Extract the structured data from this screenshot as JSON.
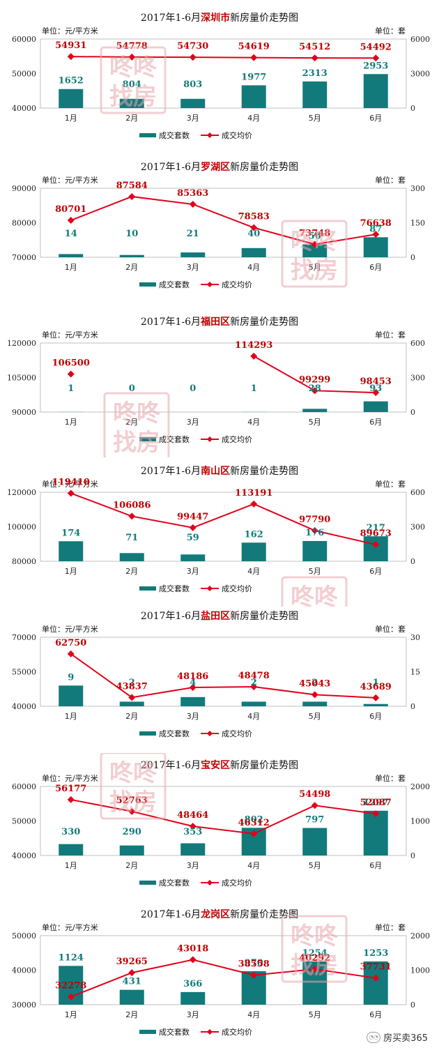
{
  "chart_data": [
    {
      "type": "bar",
      "title": "2017年1-6月深圳市新房量价走势图",
      "title_parts": {
        "prefix": "2017年1-6月",
        "highlight": "深圳市",
        "suffix": "新房量价走势图"
      },
      "left_unit": "单位：元/平方米",
      "right_unit": "单位：套",
      "categories": [
        "1月",
        "2月",
        "3月",
        "4月",
        "5月",
        "6月"
      ],
      "left_axis": {
        "min": 40000,
        "max": 60000,
        "ticks": [
          40000,
          50000,
          60000
        ]
      },
      "right_axis": {
        "min": 0,
        "max": 6000,
        "ticks": [
          0,
          3000,
          6000
        ]
      },
      "series": [
        {
          "name": "成交套数",
          "type": "bar",
          "axis": "right",
          "color": "#127a7a",
          "values": [
            1652,
            804,
            803,
            1977,
            2313,
            2953
          ]
        },
        {
          "name": "成交均价",
          "type": "line",
          "axis": "left",
          "color": "#e2001a",
          "values": [
            54931,
            54778,
            54730,
            54619,
            54512,
            54492
          ]
        }
      ],
      "legend": "bottom"
    },
    {
      "type": "bar",
      "title": "2017年1-6月罗湖区新房量价走势图",
      "title_parts": {
        "prefix": "2017年1-6月",
        "highlight": "罗湖区",
        "suffix": "新房量价走势图"
      },
      "left_unit": "单位：元/平方米",
      "right_unit": "单位：套",
      "categories": [
        "1月",
        "2月",
        "3月",
        "4月",
        "5月",
        "6月"
      ],
      "left_axis": {
        "min": 70000,
        "max": 90000,
        "ticks": [
          70000,
          80000,
          90000
        ]
      },
      "right_axis": {
        "min": 0,
        "max": 300,
        "ticks": [
          0,
          150,
          300
        ]
      },
      "series": [
        {
          "name": "成交套数",
          "type": "bar",
          "axis": "right",
          "color": "#127a7a",
          "values": [
            14,
            10,
            21,
            40,
            56,
            87
          ]
        },
        {
          "name": "成交均价",
          "type": "line",
          "axis": "left",
          "color": "#e2001a",
          "values": [
            80701,
            87584,
            85363,
            78583,
            73748,
            76638
          ]
        }
      ],
      "legend": "bottom"
    },
    {
      "type": "bar",
      "title": "2017年1-6月福田区新房量价走势图",
      "title_parts": {
        "prefix": "2017年1-6月",
        "highlight": "福田区",
        "suffix": "新房量价走势图"
      },
      "left_unit": "单位：元/平方米",
      "right_unit": "单位：套",
      "categories": [
        "1月",
        "2月",
        "3月",
        "4月",
        "5月",
        "6月"
      ],
      "left_axis": {
        "min": 90000,
        "max": 120000,
        "ticks": [
          90000,
          105000,
          120000
        ]
      },
      "right_axis": {
        "min": 0,
        "max": 600,
        "ticks": [
          0,
          300,
          600
        ]
      },
      "series": [
        {
          "name": "成交套数",
          "type": "bar",
          "axis": "right",
          "color": "#127a7a",
          "values": [
            1,
            0,
            0,
            1,
            28,
            93
          ]
        },
        {
          "name": "成交均价",
          "type": "line",
          "axis": "left",
          "color": "#e2001a",
          "values": [
            106500,
            null,
            null,
            114293,
            99299,
            98453
          ]
        }
      ],
      "legend": "bottom"
    },
    {
      "type": "bar",
      "title": "2017年1-6月南山区新房量价走势图",
      "title_parts": {
        "prefix": "2017年1-6月",
        "highlight": "南山区",
        "suffix": "新房量价走势图"
      },
      "left_unit": "单位：元/平方米",
      "right_unit": "单位：套",
      "categories": [
        "1月",
        "2月",
        "3月",
        "4月",
        "5月",
        "6月"
      ],
      "left_axis": {
        "min": 80000,
        "max": 120000,
        "ticks": [
          80000,
          100000,
          120000
        ]
      },
      "right_axis": {
        "min": 0,
        "max": 600,
        "ticks": [
          0,
          300,
          600
        ]
      },
      "series": [
        {
          "name": "成交套数",
          "type": "bar",
          "axis": "right",
          "color": "#127a7a",
          "values": [
            174,
            71,
            59,
            162,
            176,
            217
          ]
        },
        {
          "name": "成交均价",
          "type": "line",
          "axis": "left",
          "color": "#e2001a",
          "values": [
            119410,
            106086,
            99447,
            113191,
            97790,
            89673
          ]
        }
      ],
      "legend": "bottom"
    },
    {
      "type": "bar",
      "title": "2017年1-6月盐田区新房量价走势图",
      "title_parts": {
        "prefix": "2017年1-6月",
        "highlight": "盐田区",
        "suffix": "新房量价走势图"
      },
      "left_unit": "单位：元/平方米",
      "right_unit": "单位：套",
      "categories": [
        "1月",
        "2月",
        "3月",
        "4月",
        "5月",
        "6月"
      ],
      "left_axis": {
        "min": 40000,
        "max": 70000,
        "ticks": [
          40000,
          55000,
          70000
        ]
      },
      "right_axis": {
        "min": 0,
        "max": 30,
        "ticks": [
          0,
          15,
          30
        ]
      },
      "series": [
        {
          "name": "成交套数",
          "type": "bar",
          "axis": "right",
          "color": "#127a7a",
          "values": [
            9,
            2,
            4,
            2,
            2,
            1
          ]
        },
        {
          "name": "成交均价",
          "type": "line",
          "axis": "left",
          "color": "#e2001a",
          "values": [
            62750,
            43837,
            48186,
            48478,
            45043,
            43689
          ]
        }
      ],
      "legend": "bottom"
    },
    {
      "type": "bar",
      "title": "2017年1-6月宝安区新房量价走势图",
      "title_parts": {
        "prefix": "2017年1-6月",
        "highlight": "宝安区",
        "suffix": "新房量价走势图"
      },
      "left_unit": "单位：元/平方米",
      "right_unit": "单位：套",
      "categories": [
        "1月",
        "2月",
        "3月",
        "4月",
        "5月",
        "6月"
      ],
      "left_axis": {
        "min": 40000,
        "max": 60000,
        "ticks": [
          40000,
          50000,
          60000
        ]
      },
      "right_axis": {
        "min": 0,
        "max": 2000,
        "ticks": [
          0,
          1000,
          2000
        ]
      },
      "series": [
        {
          "name": "成交套数",
          "type": "bar",
          "axis": "right",
          "color": "#127a7a",
          "values": [
            330,
            290,
            353,
            802,
            797,
            1297
          ]
        },
        {
          "name": "成交均价",
          "type": "line",
          "axis": "left",
          "color": "#e2001a",
          "values": [
            56177,
            52763,
            48464,
            46312,
            54498,
            52087
          ]
        }
      ],
      "legend": "bottom"
    },
    {
      "type": "bar",
      "title": "2017年1-6月龙岗区新房量价走势图",
      "title_parts": {
        "prefix": "2017年1-6月",
        "highlight": "龙岗区",
        "suffix": "新房量价走势图"
      },
      "left_unit": "单位：元/平方米",
      "right_unit": "单位：套",
      "categories": [
        "1月",
        "2月",
        "3月",
        "4月",
        "5月",
        "6月"
      ],
      "left_axis": {
        "min": 30000,
        "max": 50000,
        "ticks": [
          30000,
          40000,
          50000
        ]
      },
      "right_axis": {
        "min": 0,
        "max": 2000,
        "ticks": [
          0,
          1000,
          2000
        ]
      },
      "series": [
        {
          "name": "成交套数",
          "type": "bar",
          "axis": "right",
          "color": "#127a7a",
          "values": [
            1124,
            431,
            366,
            970,
            1254,
            1253
          ]
        },
        {
          "name": "成交均价",
          "type": "line",
          "axis": "left",
          "color": "#e2001a",
          "values": [
            32278,
            39265,
            43018,
            38558,
            40292,
            37731
          ]
        }
      ],
      "legend": "bottom"
    }
  ],
  "watermark": {
    "line1": "咚咚",
    "line2": "找房"
  },
  "footer": {
    "icon": "wechat-icon",
    "text": "房买卖365"
  }
}
